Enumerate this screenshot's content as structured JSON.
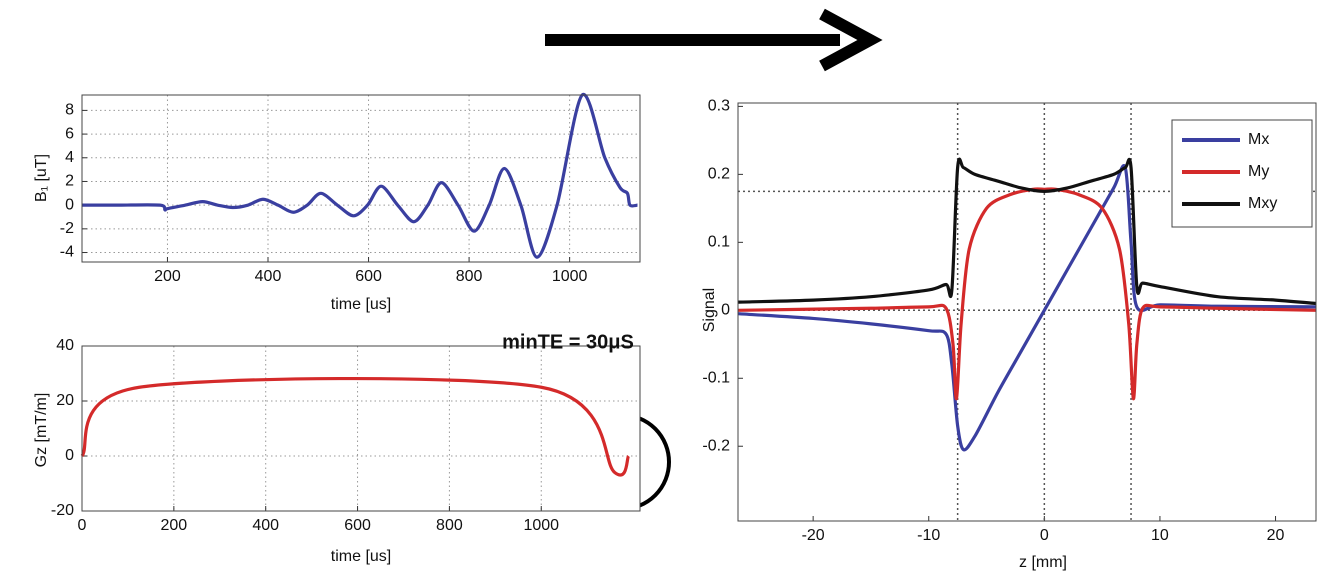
{
  "chart_data": [
    {
      "type": "line",
      "xlabel": "time [us]",
      "ylabel": "B₁ [uT]",
      "xlim": [
        30,
        1140
      ],
      "ylim": [
        -4.8,
        9.3
      ],
      "xticks": [
        200,
        400,
        600,
        800,
        1000
      ],
      "yticks": [
        -4,
        -2,
        0,
        2,
        4,
        6,
        8
      ],
      "grid": true,
      "series": [
        {
          "color": "#3a3fa0",
          "x": [
            30,
            100,
            185,
            195,
            200,
            235,
            270,
            300,
            330,
            360,
            390,
            420,
            450,
            478,
            505,
            538,
            570,
            598,
            625,
            658,
            690,
            718,
            745,
            778,
            810,
            840,
            870,
            903,
            935,
            975,
            1025,
            1070,
            1100,
            1115,
            1120,
            1135
          ],
          "values": [
            0,
            0,
            0,
            -0.4,
            -0.3,
            0,
            0.3,
            0,
            -0.2,
            0,
            0.5,
            0,
            -0.6,
            0,
            1.0,
            0,
            -0.9,
            0,
            1.6,
            0,
            -1.4,
            0,
            1.9,
            0,
            -2.2,
            0,
            3.1,
            0,
            -4.4,
            0,
            9.3,
            4,
            1.5,
            1,
            0,
            0
          ]
        }
      ]
    },
    {
      "type": "line",
      "xlabel": "time [us]",
      "ylabel": "Gz [mT/m]",
      "annotation": "minTE = 30μS",
      "xlim": [
        0,
        1215
      ],
      "ylim": [
        -20,
        40
      ],
      "xticks": [
        0,
        200,
        400,
        600,
        800,
        1000
      ],
      "yticks": [
        -20,
        0,
        20,
        40
      ],
      "grid": true,
      "series": [
        {
          "color": "#d42a2a",
          "x": [
            0,
            125,
            1000,
            1160,
            1190
          ],
          "values": [
            0,
            25,
            25,
            -6,
            0
          ]
        }
      ]
    },
    {
      "type": "line",
      "xlabel": "z [mm]",
      "ylabel": "Signal",
      "xlim": [
        -26.5,
        23.5
      ],
      "ylim": [
        -0.31,
        0.305
      ],
      "xticks": [
        -20,
        -10,
        0,
        10,
        20
      ],
      "yticks": [
        -0.2,
        -0.1,
        0,
        0.1,
        0.2,
        0.3
      ],
      "grid": false,
      "vlines": [
        -7.5,
        0,
        7.5
      ],
      "hlines": [
        0.175,
        0
      ],
      "series": [
        {
          "name": "Mx",
          "color": "#3a3fa0",
          "x": [
            -26.5,
            -20,
            -15,
            -10,
            -8.5,
            -8,
            -7.5,
            -7,
            -6,
            -4,
            -2,
            0,
            2,
            4,
            6,
            7,
            7.5,
            8,
            10,
            15,
            23.5
          ],
          "values": [
            -0.005,
            -0.012,
            -0.02,
            -0.03,
            -0.035,
            -0.08,
            -0.17,
            -0.205,
            -0.185,
            -0.12,
            -0.06,
            0,
            0.06,
            0.12,
            0.18,
            0.21,
            0.1,
            0.005,
            0.008,
            0.006,
            0.005
          ]
        },
        {
          "name": "My",
          "color": "#d42a2a",
          "x": [
            -26.5,
            -15,
            -10,
            -8.5,
            -7.9,
            -7.6,
            -7.2,
            -6.5,
            -5,
            -3,
            -1,
            0,
            1,
            3,
            5,
            6.5,
            7.3,
            7.7,
            8,
            8.5,
            10,
            15,
            23.5
          ],
          "values": [
            0,
            0.003,
            0.005,
            0.003,
            -0.05,
            -0.13,
            -0.02,
            0.09,
            0.15,
            0.17,
            0.178,
            0.178,
            0.178,
            0.17,
            0.15,
            0.09,
            -0.02,
            -0.13,
            -0.05,
            0.003,
            0.005,
            0.003,
            0
          ]
        },
        {
          "name": "Mxy",
          "color": "#111111",
          "x": [
            -26.5,
            -20,
            -15,
            -10,
            -8.5,
            -8,
            -7.5,
            -7,
            -6,
            -4,
            -2,
            0,
            2,
            4,
            6,
            7,
            7.5,
            8,
            8.5,
            10,
            15,
            20,
            23.5
          ],
          "values": [
            0.012,
            0.015,
            0.02,
            0.03,
            0.038,
            0.03,
            0.21,
            0.21,
            0.2,
            0.19,
            0.18,
            0.175,
            0.18,
            0.19,
            0.2,
            0.21,
            0.21,
            0.035,
            0.04,
            0.035,
            0.02,
            0.015,
            0.01
          ]
        }
      ]
    }
  ]
}
